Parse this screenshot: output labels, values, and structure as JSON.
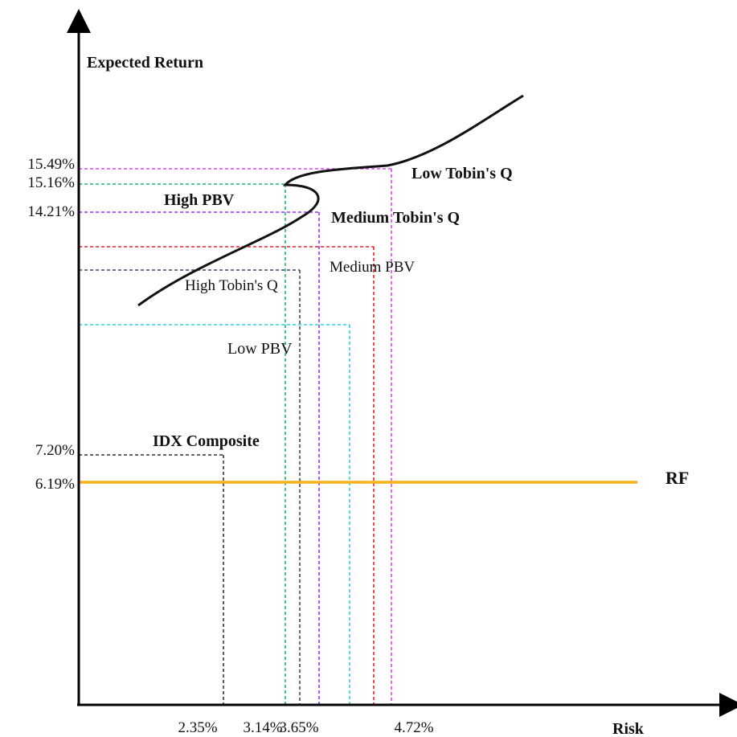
{
  "chart_data": {
    "type": "scatter",
    "title": "",
    "xlabel": "Risk",
    "ylabel": "Expected Return",
    "x_tick_labels": [
      "2.35%",
      "3.14%",
      "3.65%",
      "4.72%"
    ],
    "y_tick_labels": [
      "15.49%",
      "15.16%",
      "14.21%",
      "7.20%",
      "6.19%"
    ],
    "points": [
      {
        "name": "Low Tobin's Q",
        "bold": true,
        "x": 4.72,
        "y": 15.49,
        "color": "#e040fb"
      },
      {
        "name": "High PBV",
        "bold": true,
        "x": 3.14,
        "y": 15.16,
        "color": "#1db37a"
      },
      {
        "name": "Medium Tobin's Q",
        "bold": true,
        "x": 3.65,
        "y": 14.21,
        "color": "#9b30ff"
      },
      {
        "name": "Medium PBV",
        "bold": false,
        "x": 4.6,
        "y": 13.0,
        "color": "#e8202a"
      },
      {
        "name": "High Tobin's  Q",
        "bold": false,
        "x": 3.4,
        "y": 12.2,
        "color": "#37476e"
      },
      {
        "name": "Low PBV",
        "bold": false,
        "x": 4.0,
        "y": 10.6,
        "color": "#29d4e6"
      },
      {
        "name": "IDX Composite",
        "bold": true,
        "x": 2.35,
        "y": 7.2,
        "color": "#333333"
      }
    ],
    "rf": {
      "name": "RF",
      "y": 6.19,
      "color": "#f5b21a"
    },
    "efficient_frontier_color": "#111111",
    "xlim": [
      0,
      7.6
    ],
    "ylim": [
      0,
      18.5
    ],
    "grid": false,
    "legend": "none"
  }
}
